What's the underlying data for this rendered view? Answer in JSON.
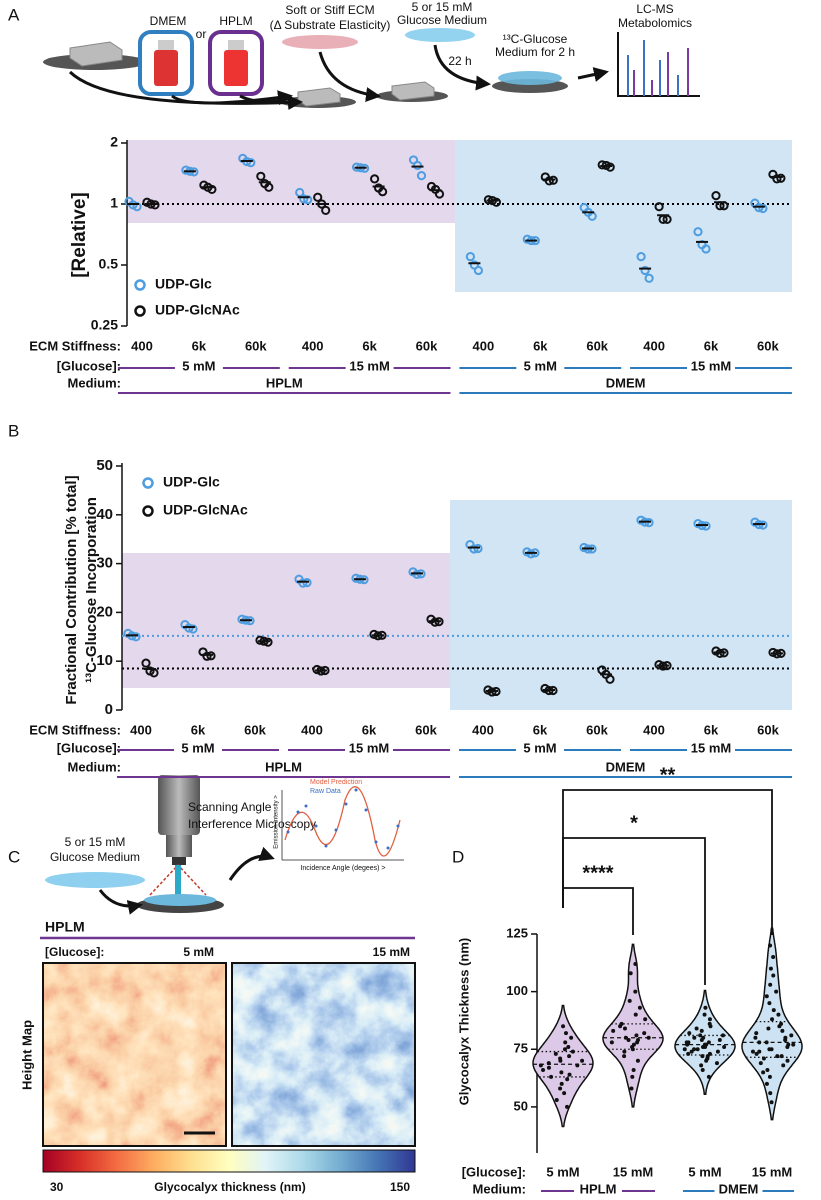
{
  "panel_labels": [
    "A",
    "B",
    "C",
    "D"
  ],
  "schematic_a": {
    "dmem": "DMEM",
    "or": "or",
    "hplm": "HPLM",
    "ecm": [
      "Soft or Stiff ECM",
      "(Δ Substrate Elasticity)"
    ],
    "medium": [
      "5 or 15 mM",
      "Glucose Medium"
    ],
    "time": "22 h",
    "label_medium": [
      "¹³C-Glucose",
      "Medium for 2 h"
    ],
    "ms": [
      "LC-MS",
      "Metabolomics"
    ]
  },
  "panel_c": {
    "medium": [
      "5 or 15 mM",
      "Glucose Medium"
    ],
    "microscopy": [
      "Scanning Angle",
      "Interference Microscopy"
    ],
    "inset": {
      "model": "Model Prediction",
      "raw": "Raw Data",
      "y_label": "Emission Intensity >",
      "x_label": "Incidence Angle (degees) >"
    },
    "medium_name": "HPLM",
    "glucose_label": "[Glucose]:",
    "conditions": [
      "5 mM",
      "15 mM"
    ],
    "map_label": "Height Map",
    "colorbar": {
      "title": "Glycocalyx thickness (nm)",
      "min": 30,
      "max": 150
    }
  },
  "chart_data": [
    {
      "type": "scatter",
      "y_label": "[Relative]",
      "log_scale": true,
      "ylim": [
        0.25,
        2
      ],
      "yticks": [
        0.25,
        0.5,
        1,
        2
      ],
      "legend": "lower left",
      "reference_lines": [
        {
          "value": 1,
          "color": "#000000"
        }
      ],
      "row_labels": {
        "stiffness": "ECM Stiffness:",
        "glucose": "[Glucose]:",
        "medium": "Medium:"
      },
      "categories": [
        "400",
        "6k",
        "60k",
        "400",
        "6k",
        "60k",
        "400",
        "6k",
        "60k",
        "400",
        "6k",
        "60k"
      ],
      "glucose_groups": [
        "5 mM",
        "15 mM",
        "5 mM",
        "15 mM"
      ],
      "medium_groups": [
        {
          "name": "HPLM",
          "color": "#6e3591"
        },
        {
          "name": "DMEM",
          "color": "#2b7bbd"
        }
      ],
      "series": [
        {
          "name": "UDP-Glc",
          "color": "#4d9de0",
          "values": [
            [
              1.03,
              0.99,
              0.97
            ],
            [
              1.47,
              1.45,
              1.44
            ],
            [
              1.68,
              1.62,
              1.6
            ],
            [
              1.14,
              1.06,
              1.05
            ],
            [
              1.52,
              1.51,
              1.5
            ],
            [
              1.65,
              1.55,
              1.38
            ],
            [
              0.55,
              0.5,
              0.47
            ],
            [
              0.67,
              0.66,
              0.66
            ],
            [
              0.96,
              0.91,
              0.87
            ],
            [
              0.55,
              0.47,
              0.43
            ],
            [
              0.73,
              0.63,
              0.6
            ],
            [
              1.01,
              0.96,
              0.95
            ]
          ],
          "means": [
            1.0,
            1.45,
            1.63,
            1.08,
            1.51,
            1.53,
            0.51,
            0.66,
            0.91,
            0.48,
            0.65,
            0.97
          ]
        },
        {
          "name": "UDP-GlcNAc",
          "color": "#111111",
          "values": [
            [
              1.02,
              1.0,
              0.99
            ],
            [
              1.24,
              1.21,
              1.18
            ],
            [
              1.37,
              1.26,
              1.21
            ],
            [
              1.08,
              1.0,
              0.93
            ],
            [
              1.33,
              1.2,
              1.15
            ],
            [
              1.22,
              1.18,
              1.12
            ],
            [
              1.05,
              1.04,
              1.02
            ],
            [
              1.36,
              1.3,
              1.31
            ],
            [
              1.56,
              1.55,
              1.52
            ],
            [
              0.97,
              0.84,
              0.84
            ],
            [
              1.1,
              0.98,
              0.98
            ],
            [
              1.4,
              1.33,
              1.34
            ]
          ],
          "means": [
            1.0,
            1.21,
            1.28,
            1.0,
            1.22,
            1.17,
            1.04,
            1.32,
            1.54,
            0.88,
            1.02,
            1.36
          ]
        }
      ]
    },
    {
      "type": "scatter",
      "y_label": [
        "Fractional Contribution [% total]",
        "¹³C-Glucose Incorporation"
      ],
      "log_scale": false,
      "ylim": [
        0,
        50
      ],
      "yticks": [
        0,
        10,
        20,
        30,
        40,
        50
      ],
      "legend": "upper left",
      "reference_lines": [
        {
          "value": 15.2,
          "color": "#4d9de0"
        },
        {
          "value": 8.5,
          "color": "#000000"
        }
      ],
      "row_labels": {
        "stiffness": "ECM Stiffness:",
        "glucose": "[Glucose]:",
        "medium": "Medium:"
      },
      "categories": [
        "400",
        "6k",
        "60k",
        "400",
        "6k",
        "60k",
        "400",
        "6k",
        "60k",
        "400",
        "6k",
        "60k"
      ],
      "glucose_groups": [
        "5 mM",
        "15 mM",
        "5 mM",
        "15 mM"
      ],
      "medium_groups": [
        {
          "name": "HPLM",
          "color": "#6e3591"
        },
        {
          "name": "DMEM",
          "color": "#2b7bbd"
        }
      ],
      "series": [
        {
          "name": "UDP-Glc",
          "color": "#4d9de0",
          "values": [
            [
              15.7,
              15.2,
              15.0
            ],
            [
              17.5,
              16.8,
              16.6
            ],
            [
              18.6,
              18.4,
              18.3
            ],
            [
              26.8,
              26.0,
              26.1
            ],
            [
              27.0,
              26.8,
              26.7
            ],
            [
              28.3,
              27.8,
              27.9
            ],
            [
              33.9,
              33.0,
              33.1
            ],
            [
              32.4,
              32.0,
              32.2
            ],
            [
              33.3,
              33.0,
              33.0
            ],
            [
              38.9,
              38.5,
              38.4
            ],
            [
              38.2,
              37.8,
              37.7
            ],
            [
              38.5,
              38.0,
              37.9
            ]
          ],
          "means": [
            15.3,
            17.0,
            18.4,
            26.3,
            26.8,
            28.0,
            33.3,
            32.2,
            33.1,
            38.6,
            37.9,
            38.1
          ]
        },
        {
          "name": "UDP-GlcNAc",
          "color": "#111111",
          "values": [
            [
              9.6,
              8.0,
              7.6
            ],
            [
              11.9,
              11.0,
              11.1
            ],
            [
              14.3,
              14.1,
              13.9
            ],
            [
              8.3,
              8.0,
              8.1
            ],
            [
              15.5,
              15.2,
              15.3
            ],
            [
              18.6,
              18.0,
              18.1
            ],
            [
              4.1,
              3.7,
              3.8
            ],
            [
              4.4,
              4.0,
              4.0
            ],
            [
              8.2,
              7.3,
              6.3
            ],
            [
              9.3,
              9.0,
              9.1
            ],
            [
              12.1,
              11.6,
              11.7
            ],
            [
              11.8,
              11.5,
              11.6
            ]
          ],
          "means": [
            8.4,
            11.3,
            14.1,
            8.1,
            15.3,
            18.2,
            3.9,
            4.1,
            7.3,
            9.1,
            11.8,
            11.6
          ]
        }
      ]
    },
    {
      "type": "violin",
      "y_label": "Glycocalyx Thickness (nm)",
      "ylim": [
        30,
        125
      ],
      "yticks": [
        50,
        75,
        100,
        125
      ],
      "row_labels": {
        "glucose": "[Glucose]:",
        "medium": "Medium:"
      },
      "categories": [
        "5 mM",
        "15 mM",
        "5 mM",
        "15 mM"
      ],
      "medium_groups": [
        {
          "name": "HPLM",
          "color": "#6e3591"
        },
        {
          "name": "DMEM",
          "color": "#2b7bbd"
        }
      ],
      "groups": [
        {
          "color": "#dcc9e8",
          "points": [
            50,
            53,
            56,
            58,
            60,
            62,
            63,
            64,
            65,
            66,
            67,
            68,
            68,
            69,
            70,
            70,
            71,
            72,
            73,
            74,
            75,
            76,
            78,
            80,
            82,
            85
          ],
          "median": 68.5,
          "quartiles": [
            63,
            74
          ]
        },
        {
          "color": "#dcc9e8",
          "points": [
            58,
            63,
            66,
            70,
            72,
            74,
            75,
            76,
            77,
            78,
            78,
            79,
            79,
            80,
            80,
            81,
            82,
            83,
            84,
            85,
            86,
            88,
            90,
            93,
            96,
            100,
            108,
            112
          ],
          "median": 80,
          "quartiles": [
            75,
            86
          ]
        },
        {
          "color": "#cde2f3",
          "points": [
            63,
            66,
            68,
            69,
            70,
            71,
            71,
            72,
            72,
            73,
            73,
            74,
            74,
            75,
            75,
            75,
            76,
            76,
            76,
            77,
            77,
            77,
            78,
            78,
            78,
            79,
            79,
            80,
            80,
            81,
            81,
            82,
            83,
            84,
            85,
            86,
            88,
            90,
            93
          ],
          "median": 77,
          "quartiles": [
            72.5,
            81
          ]
        },
        {
          "color": "#cde2f3",
          "points": [
            52,
            56,
            60,
            63,
            65,
            66,
            68,
            69,
            70,
            71,
            72,
            72,
            73,
            74,
            74,
            75,
            75,
            76,
            77,
            77,
            78,
            78,
            79,
            80,
            80,
            81,
            82,
            83,
            84,
            85,
            86,
            88,
            90,
            92,
            95,
            98,
            100,
            103,
            107,
            110,
            115,
            120
          ],
          "median": 78,
          "quartiles": [
            71.5,
            87
          ]
        }
      ],
      "significance": [
        {
          "from": 0,
          "to": 1,
          "label": "****"
        },
        {
          "from": 0,
          "to": 2,
          "label": "*"
        },
        {
          "from": 0,
          "to": 3,
          "label": "**"
        }
      ]
    }
  ]
}
